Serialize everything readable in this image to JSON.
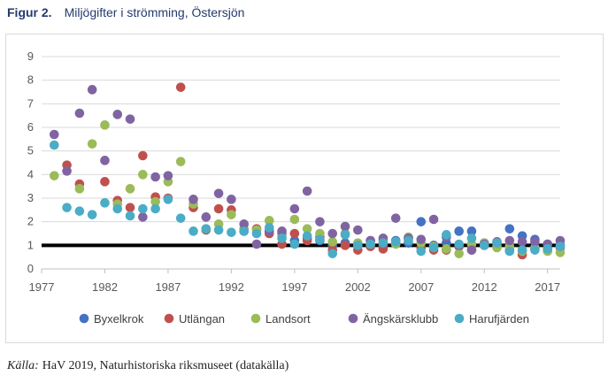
{
  "figure": {
    "number": "Figur 2.",
    "title": "Miljögifter i strömming, Östersjön"
  },
  "caption": {
    "source_label": "Källa:",
    "text": "HaV 2019,  Naturhistoriska riksmuseet (datakälla)"
  },
  "chart_data": {
    "type": "scatter",
    "title": "",
    "xlabel": "",
    "ylabel": "",
    "xlim": [
      1977,
      2018
    ],
    "ylim": [
      0,
      9
    ],
    "x_ticks": [
      1977,
      1982,
      1987,
      1992,
      1997,
      2002,
      2007,
      2012,
      2017
    ],
    "y_ticks": [
      0,
      1,
      2,
      3,
      4,
      5,
      6,
      7,
      8,
      9
    ],
    "grid": "horizontal",
    "legend_position": "bottom",
    "reference_line": {
      "y": 1,
      "color": "#000000"
    },
    "series": [
      {
        "name": "Byxelkrok",
        "color": "#4472c4",
        "points": [
          [
            1995,
            1.6
          ],
          [
            1996,
            1.5
          ],
          [
            1997,
            1.2
          ],
          [
            1998,
            1.3
          ],
          [
            1999,
            1.2
          ],
          [
            2000,
            1.0
          ],
          [
            2001,
            1.1
          ],
          [
            2002,
            1.0
          ],
          [
            2003,
            1.2
          ],
          [
            2004,
            1.0
          ],
          [
            2005,
            1.2
          ],
          [
            2006,
            1.1
          ],
          [
            2007,
            2.0
          ],
          [
            2008,
            1.0
          ],
          [
            2009,
            1.1
          ],
          [
            2010,
            1.6
          ],
          [
            2011,
            1.6
          ],
          [
            2012,
            1.1
          ],
          [
            2013,
            1.0
          ],
          [
            2014,
            1.7
          ],
          [
            2015,
            1.4
          ],
          [
            2016,
            1.25
          ],
          [
            2017,
            1.05
          ],
          [
            2018,
            1.0
          ]
        ]
      },
      {
        "name": "Utlängan",
        "color": "#c0504d",
        "points": [
          [
            1979,
            4.4
          ],
          [
            1980,
            3.6
          ],
          [
            1982,
            3.7
          ],
          [
            1983,
            2.9
          ],
          [
            1984,
            2.6
          ],
          [
            1985,
            4.8
          ],
          [
            1986,
            3.05
          ],
          [
            1987,
            3.0
          ],
          [
            1988,
            7.7
          ],
          [
            1989,
            2.6
          ],
          [
            1990,
            1.65
          ],
          [
            1991,
            2.55
          ],
          [
            1992,
            2.5
          ],
          [
            1993,
            1.6
          ],
          [
            1994,
            1.7
          ],
          [
            1995,
            1.5
          ],
          [
            1996,
            1.05
          ],
          [
            1997,
            1.5
          ],
          [
            1998,
            1.2
          ],
          [
            1999,
            1.35
          ],
          [
            2000,
            0.8
          ],
          [
            2001,
            1.0
          ],
          [
            2002,
            0.8
          ],
          [
            2003,
            0.95
          ],
          [
            2004,
            0.85
          ],
          [
            2005,
            1.1
          ],
          [
            2006,
            1.3
          ],
          [
            2007,
            0.9
          ],
          [
            2008,
            0.8
          ],
          [
            2009,
            0.8
          ],
          [
            2010,
            0.95
          ],
          [
            2011,
            0.8
          ],
          [
            2012,
            1.0
          ],
          [
            2013,
            0.95
          ],
          [
            2014,
            0.8
          ],
          [
            2015,
            0.6
          ],
          [
            2016,
            0.85
          ],
          [
            2017,
            0.8
          ],
          [
            2018,
            0.9
          ]
        ]
      },
      {
        "name": "Landsort",
        "color": "#9bbb59",
        "points": [
          [
            1978,
            3.95
          ],
          [
            1980,
            3.4
          ],
          [
            1981,
            5.3
          ],
          [
            1982,
            6.1
          ],
          [
            1983,
            2.75
          ],
          [
            1984,
            3.4
          ],
          [
            1985,
            4.0
          ],
          [
            1986,
            2.85
          ],
          [
            1987,
            3.7
          ],
          [
            1988,
            4.55
          ],
          [
            1989,
            2.75
          ],
          [
            1990,
            1.7
          ],
          [
            1991,
            1.9
          ],
          [
            1992,
            2.3
          ],
          [
            1993,
            1.7
          ],
          [
            1994,
            1.65
          ],
          [
            1995,
            2.05
          ],
          [
            1996,
            1.4
          ],
          [
            1997,
            2.1
          ],
          [
            1998,
            1.7
          ],
          [
            1999,
            1.5
          ],
          [
            2000,
            1.15
          ],
          [
            2001,
            1.5
          ],
          [
            2002,
            1.1
          ],
          [
            2003,
            1.05
          ],
          [
            2004,
            1.2
          ],
          [
            2005,
            1.05
          ],
          [
            2006,
            1.35
          ],
          [
            2007,
            1.1
          ],
          [
            2008,
            0.95
          ],
          [
            2009,
            0.85
          ],
          [
            2010,
            0.65
          ],
          [
            2011,
            1.05
          ],
          [
            2012,
            1.1
          ],
          [
            2013,
            0.9
          ],
          [
            2014,
            0.95
          ],
          [
            2015,
            0.75
          ],
          [
            2016,
            0.9
          ],
          [
            2017,
            0.75
          ],
          [
            2018,
            0.7
          ]
        ]
      },
      {
        "name": "Ängskärsklubb",
        "color": "#8064a2",
        "points": [
          [
            1978,
            5.7
          ],
          [
            1979,
            4.15
          ],
          [
            1980,
            6.6
          ],
          [
            1981,
            7.6
          ],
          [
            1982,
            4.6
          ],
          [
            1983,
            6.55
          ],
          [
            1984,
            6.35
          ],
          [
            1985,
            2.2
          ],
          [
            1986,
            3.9
          ],
          [
            1987,
            3.95
          ],
          [
            1989,
            2.95
          ],
          [
            1990,
            2.2
          ],
          [
            1991,
            3.2
          ],
          [
            1992,
            2.95
          ],
          [
            1993,
            1.9
          ],
          [
            1994,
            1.05
          ],
          [
            1995,
            1.6
          ],
          [
            1996,
            1.6
          ],
          [
            1997,
            2.55
          ],
          [
            1998,
            3.3
          ],
          [
            1999,
            2.0
          ],
          [
            2000,
            1.5
          ],
          [
            2001,
            1.8
          ],
          [
            2002,
            1.65
          ],
          [
            2003,
            1.2
          ],
          [
            2004,
            1.3
          ],
          [
            2005,
            2.15
          ],
          [
            2006,
            1.3
          ],
          [
            2007,
            1.25
          ],
          [
            2008,
            2.1
          ],
          [
            2009,
            1.35
          ],
          [
            2010,
            1.0
          ],
          [
            2011,
            0.8
          ],
          [
            2012,
            1.05
          ],
          [
            2013,
            1.15
          ],
          [
            2014,
            1.2
          ],
          [
            2015,
            1.15
          ],
          [
            2016,
            1.15
          ],
          [
            2017,
            1.05
          ],
          [
            2018,
            1.2
          ]
        ]
      },
      {
        "name": "Harufjärden",
        "color": "#4bacc6",
        "points": [
          [
            1978,
            5.25
          ],
          [
            1979,
            2.6
          ],
          [
            1980,
            2.45
          ],
          [
            1981,
            2.3
          ],
          [
            1982,
            2.8
          ],
          [
            1983,
            2.55
          ],
          [
            1984,
            2.25
          ],
          [
            1985,
            2.55
          ],
          [
            1986,
            2.55
          ],
          [
            1987,
            2.95
          ],
          [
            1988,
            2.15
          ],
          [
            1989,
            1.6
          ],
          [
            1990,
            1.7
          ],
          [
            1991,
            1.65
          ],
          [
            1992,
            1.55
          ],
          [
            1993,
            1.6
          ],
          [
            1994,
            1.5
          ],
          [
            1995,
            1.75
          ],
          [
            1996,
            1.3
          ],
          [
            1997,
            1.05
          ],
          [
            1998,
            1.4
          ],
          [
            1999,
            1.25
          ],
          [
            2000,
            0.65
          ],
          [
            2001,
            1.45
          ],
          [
            2002,
            1.0
          ],
          [
            2003,
            1.05
          ],
          [
            2004,
            1.1
          ],
          [
            2005,
            1.15
          ],
          [
            2006,
            1.2
          ],
          [
            2007,
            0.75
          ],
          [
            2008,
            0.9
          ],
          [
            2009,
            1.45
          ],
          [
            2010,
            1.05
          ],
          [
            2011,
            1.3
          ],
          [
            2012,
            1.0
          ],
          [
            2013,
            1.1
          ],
          [
            2014,
            0.75
          ],
          [
            2015,
            0.8
          ],
          [
            2016,
            0.8
          ],
          [
            2017,
            0.85
          ],
          [
            2018,
            0.95
          ]
        ]
      }
    ]
  }
}
